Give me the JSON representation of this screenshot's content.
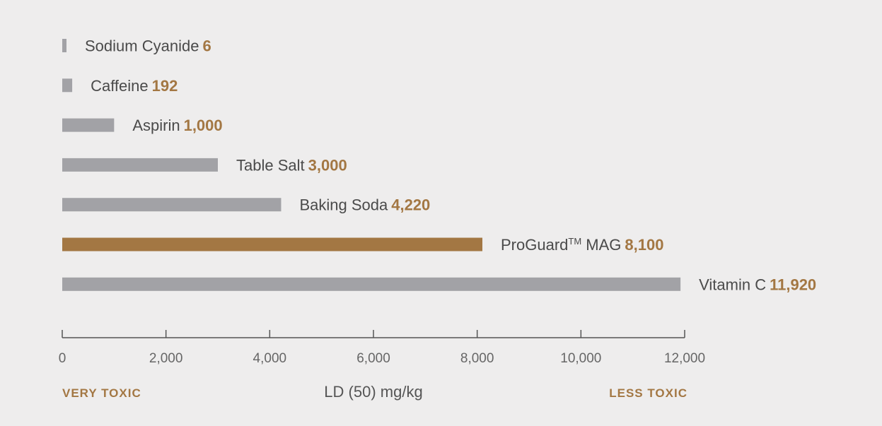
{
  "chart_data": {
    "type": "bar",
    "orientation": "horizontal",
    "categories": [
      {
        "name": "Sodium Cyanide",
        "sup": "",
        "suffix": ""
      },
      {
        "name": "Caffeine",
        "sup": "",
        "suffix": ""
      },
      {
        "name": "Aspirin",
        "sup": "",
        "suffix": ""
      },
      {
        "name": "Table Salt",
        "sup": "",
        "suffix": ""
      },
      {
        "name": "Baking Soda",
        "sup": "",
        "suffix": ""
      },
      {
        "name": "ProGuard",
        "sup": "TM",
        "suffix": " MAG"
      },
      {
        "name": "Vitamin C",
        "sup": "",
        "suffix": ""
      }
    ],
    "values": [
      6,
      192,
      1000,
      3000,
      4220,
      8100,
      11920
    ],
    "value_labels": [
      "6",
      "192",
      "1,000",
      "3,000",
      "4,220",
      "8,100",
      "11,920"
    ],
    "highlight_index": 5,
    "xlim": [
      0,
      12000
    ],
    "xticks": [
      0,
      2000,
      4000,
      6000,
      8000,
      10000,
      12000
    ],
    "xtick_labels": [
      "0",
      "2,000",
      "4,000",
      "6,000",
      "8,000",
      "10,000",
      "12,000"
    ],
    "xlabel": "LD (50) mg/kg",
    "left_end_label": "VERY TOXIC",
    "right_end_label": "LESS TOXIC",
    "grid": false,
    "colors": {
      "bar": "#a2a2a6",
      "highlight": "#a37743",
      "value_text": "#a37743",
      "axis": "#555555",
      "background": "#eeeded"
    }
  }
}
